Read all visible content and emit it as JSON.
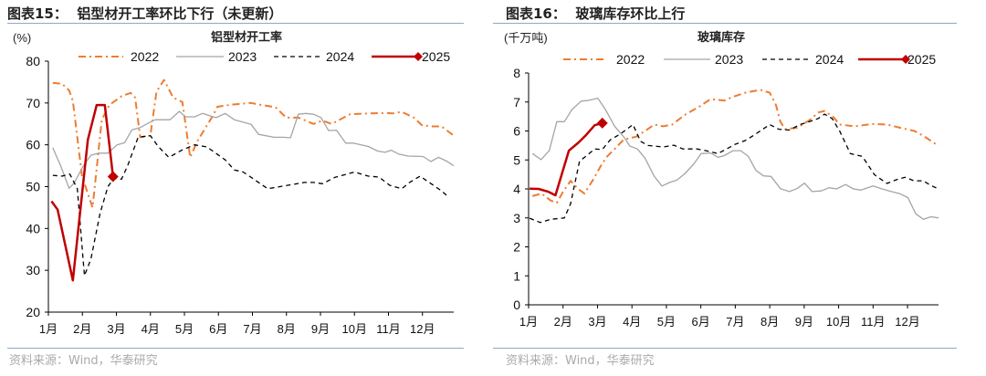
{
  "left": {
    "figure_title": "图表15：  铝型材开工率环比下行（未更新）",
    "source": "资料来源：Wind，华泰研究"
  },
  "right": {
    "figure_title": "图表16：  玻璃库存环比上行",
    "source": "资料来源：Wind，华泰研究"
  },
  "chart_data": [
    {
      "type": "line",
      "title": "铝型材开工率",
      "ylabel": "(%)",
      "ylim": [
        20,
        80
      ],
      "yticks": [
        20,
        30,
        40,
        50,
        60,
        70,
        80
      ],
      "xlim": [
        1,
        12.92
      ],
      "xticks": [
        1,
        2,
        3,
        4,
        5,
        6,
        7,
        8,
        9,
        10,
        11,
        12
      ],
      "xtick_labels": [
        "1月",
        "2月",
        "3月",
        "4月",
        "5月",
        "6月",
        "7月",
        "8月",
        "9月",
        "10月",
        "11月",
        "12月"
      ],
      "grid": false,
      "legend": "top",
      "series": [
        {
          "name": "2022",
          "color": "#ED7D31",
          "style": "dashdot",
          "x": [
            1.13,
            1.4,
            1.61,
            1.72,
            1.99,
            2.3,
            2.57,
            2.79,
            3.15,
            3.42,
            3.55,
            3.7,
            4.0,
            4.18,
            4.4,
            4.67,
            4.94,
            5.17,
            5.39,
            5.84,
            5.97,
            6.38,
            6.96,
            7.27,
            7.68,
            7.99,
            8.35,
            8.8,
            9.06,
            9.33,
            9.87,
            10.41,
            10.95,
            11.13,
            11.39,
            11.75,
            11.98,
            12.29,
            12.56,
            12.92
          ],
          "y": [
            74.8,
            74.6,
            73,
            70.5,
            52.4,
            45,
            66,
            69.5,
            71.6,
            72.4,
            71.3,
            61.8,
            62.2,
            72.7,
            75.5,
            71.3,
            70.2,
            57,
            61,
            67,
            69.1,
            69.6,
            70,
            69.5,
            69,
            66.5,
            66.5,
            65,
            65.8,
            65,
            67.3,
            67.5,
            67.6,
            67.5,
            67.9,
            66.5,
            64.7,
            64.4,
            64.4,
            62.2
          ]
        },
        {
          "name": "2023",
          "color": "#A5A5A5",
          "style": "solid",
          "x": [
            1.13,
            1.36,
            1.61,
            1.76,
            2.03,
            2.25,
            2.48,
            2.75,
            3.02,
            3.24,
            3.46,
            3.69,
            3.96,
            4.14,
            4.58,
            4.85,
            5.03,
            5.3,
            5.53,
            5.93,
            6.2,
            6.47,
            6.96,
            7.18,
            7.63,
            7.9,
            8.12,
            8.35,
            8.57,
            8.8,
            9.02,
            9.24,
            9.47,
            9.74,
            9.96,
            10.41,
            10.68,
            10.9,
            11.08,
            11.3,
            11.57,
            12.02,
            12.25,
            12.47,
            12.69,
            12.92
          ],
          "y": [
            59.3,
            55,
            49.6,
            50.9,
            55,
            57.5,
            58,
            58,
            60,
            60.5,
            63.6,
            64.1,
            65.3,
            66,
            66,
            68,
            66.7,
            66.7,
            67.5,
            66.5,
            67.5,
            66,
            64.9,
            62.5,
            61.8,
            61.8,
            61.7,
            67.3,
            67.5,
            67.3,
            66.5,
            63.4,
            63.5,
            60.4,
            60.4,
            59.6,
            58.5,
            58.2,
            58.7,
            57.8,
            57.3,
            57.2,
            56,
            57,
            56.2,
            55
          ]
        },
        {
          "name": "2024",
          "color": "#000000",
          "style": "dashed",
          "x": [
            1.13,
            1.4,
            1.63,
            1.85,
            2.06,
            2.25,
            2.52,
            2.75,
            2.93,
            3.15,
            3.33,
            3.64,
            4.0,
            4.23,
            4.54,
            4.94,
            5.3,
            5.66,
            6.2,
            6.47,
            6.73,
            7.0,
            7.27,
            7.45,
            7.81,
            8.17,
            8.53,
            8.8,
            9.06,
            9.42,
            9.78,
            10.0,
            10.41,
            10.72,
            11.04,
            11.39,
            11.62,
            11.93,
            12.29,
            12.56,
            12.78
          ],
          "y": [
            52.7,
            52.5,
            53,
            49.5,
            28.7,
            32.7,
            43.6,
            50,
            52,
            51.8,
            55,
            61.8,
            62.2,
            59.6,
            57,
            58.8,
            60,
            59.5,
            56.4,
            54,
            53.5,
            52,
            50.5,
            49.5,
            50,
            50.5,
            51,
            51,
            50.7,
            52.2,
            53,
            53.5,
            52.5,
            52.3,
            50.3,
            49.5,
            51,
            52.5,
            50.5,
            49,
            47.4
          ]
        },
        {
          "name": "2025",
          "color": "#C00000",
          "style": "solid",
          "marker": "diamond-last",
          "x": [
            1.09,
            1.27,
            1.72,
            2.16,
            2.42,
            2.66,
            2.9
          ],
          "y": [
            46.5,
            44.5,
            27.6,
            61.2,
            69.5,
            69.5,
            52.4
          ]
        }
      ]
    },
    {
      "type": "line",
      "title": "玻璃库存",
      "ylabel": "(千万吨)",
      "ylim": [
        0,
        8
      ],
      "yticks": [
        0,
        1,
        2,
        3,
        4,
        5,
        6,
        7,
        8
      ],
      "xlim": [
        1,
        12.9
      ],
      "xticks": [
        1,
        2,
        3,
        4,
        5,
        6,
        7,
        8,
        9,
        10,
        11,
        12
      ],
      "xtick_labels": [
        "1月",
        "2月",
        "3月",
        "4月",
        "5月",
        "6月",
        "7月",
        "8月",
        "9月",
        "10月",
        "11月",
        "12月"
      ],
      "grid": false,
      "legend": "top",
      "series": [
        {
          "name": "2022",
          "color": "#ED7D31",
          "style": "dashdot",
          "x": [
            1.11,
            1.38,
            1.64,
            1.82,
            2.0,
            2.22,
            2.44,
            2.62,
            2.88,
            3.1,
            3.28,
            3.5,
            3.76,
            4.12,
            4.38,
            4.65,
            4.91,
            5.17,
            5.53,
            5.97,
            6.28,
            6.68,
            6.94,
            7.29,
            7.73,
            8.0,
            8.18,
            8.31,
            8.44,
            8.8,
            9.15,
            9.41,
            9.59,
            9.85,
            10.03,
            10.47,
            10.97,
            11.41,
            11.85,
            12.2,
            12.5,
            12.9
          ],
          "y": [
            3.75,
            3.84,
            3.6,
            3.52,
            3.9,
            4.28,
            4.0,
            3.84,
            4.33,
            4.8,
            5.12,
            5.38,
            5.7,
            5.8,
            6.0,
            6.22,
            6.16,
            6.22,
            6.55,
            6.85,
            7.1,
            7.05,
            7.18,
            7.32,
            7.42,
            7.32,
            6.9,
            6.32,
            6.06,
            6.11,
            6.37,
            6.64,
            6.69,
            6.48,
            6.22,
            6.16,
            6.24,
            6.22,
            6.09,
            6.0,
            5.8,
            5.48
          ]
        },
        {
          "name": "2023",
          "color": "#A5A5A5",
          "style": "solid",
          "x": [
            1.11,
            1.36,
            1.6,
            1.82,
            2.04,
            2.26,
            2.53,
            2.7,
            3.01,
            3.23,
            3.5,
            3.76,
            3.94,
            4.16,
            4.38,
            4.65,
            4.87,
            5.09,
            5.31,
            5.53,
            5.79,
            6.01,
            6.28,
            6.5,
            6.68,
            6.94,
            7.16,
            7.38,
            7.6,
            7.82,
            8.04,
            8.31,
            8.57,
            8.79,
            9.01,
            9.23,
            9.5,
            9.72,
            9.94,
            10.2,
            10.43,
            10.65,
            11.0,
            11.26,
            11.53,
            11.79,
            12.01,
            12.24,
            12.46,
            12.68,
            12.9
          ],
          "y": [
            5.22,
            5.01,
            5.32,
            6.32,
            6.32,
            6.74,
            7.03,
            7.05,
            7.13,
            6.74,
            6.16,
            5.8,
            5.48,
            5.38,
            5.06,
            4.43,
            4.1,
            4.22,
            4.31,
            4.52,
            4.85,
            5.22,
            5.24,
            5.09,
            5.15,
            5.32,
            5.32,
            5.12,
            4.64,
            4.45,
            4.43,
            4.01,
            3.91,
            4.01,
            4.2,
            3.91,
            3.93,
            4.04,
            4.0,
            4.15,
            4.0,
            3.96,
            4.1,
            4.0,
            3.91,
            3.83,
            3.7,
            3.14,
            2.95,
            3.04,
            3.0
          ]
        },
        {
          "name": "2024",
          "color": "#000000",
          "style": "dashed",
          "x": [
            1.03,
            1.34,
            1.64,
            2.04,
            2.22,
            2.48,
            2.66,
            2.92,
            3.14,
            3.37,
            3.67,
            4.03,
            4.25,
            4.47,
            4.91,
            5.22,
            5.48,
            5.88,
            6.15,
            6.5,
            6.98,
            7.29,
            7.6,
            8.0,
            8.26,
            8.57,
            8.88,
            9.15,
            9.41,
            9.59,
            9.81,
            10.03,
            10.34,
            10.69,
            11.04,
            11.4,
            11.71,
            11.93,
            12.19,
            12.45,
            12.68,
            12.9
          ],
          "y": [
            2.99,
            2.84,
            2.95,
            3.0,
            3.49,
            4.96,
            5.12,
            5.38,
            5.36,
            5.69,
            5.9,
            6.22,
            5.64,
            5.5,
            5.45,
            5.51,
            5.38,
            5.38,
            5.32,
            5.22,
            5.53,
            5.67,
            5.9,
            6.22,
            6.06,
            6.03,
            6.22,
            6.32,
            6.43,
            6.58,
            6.43,
            6.0,
            5.22,
            5.12,
            4.49,
            4.19,
            4.33,
            4.4,
            4.28,
            4.28,
            4.12,
            4.0
          ]
        },
        {
          "name": "2025",
          "color": "#C00000",
          "style": "solid",
          "marker": "diamond-last",
          "x": [
            1.03,
            1.29,
            1.56,
            1.78,
            2.17,
            2.44,
            2.66,
            2.92,
            3.14
          ],
          "y": [
            4.01,
            4.0,
            3.91,
            3.78,
            5.32,
            5.59,
            5.85,
            6.2,
            6.27
          ]
        }
      ]
    }
  ]
}
